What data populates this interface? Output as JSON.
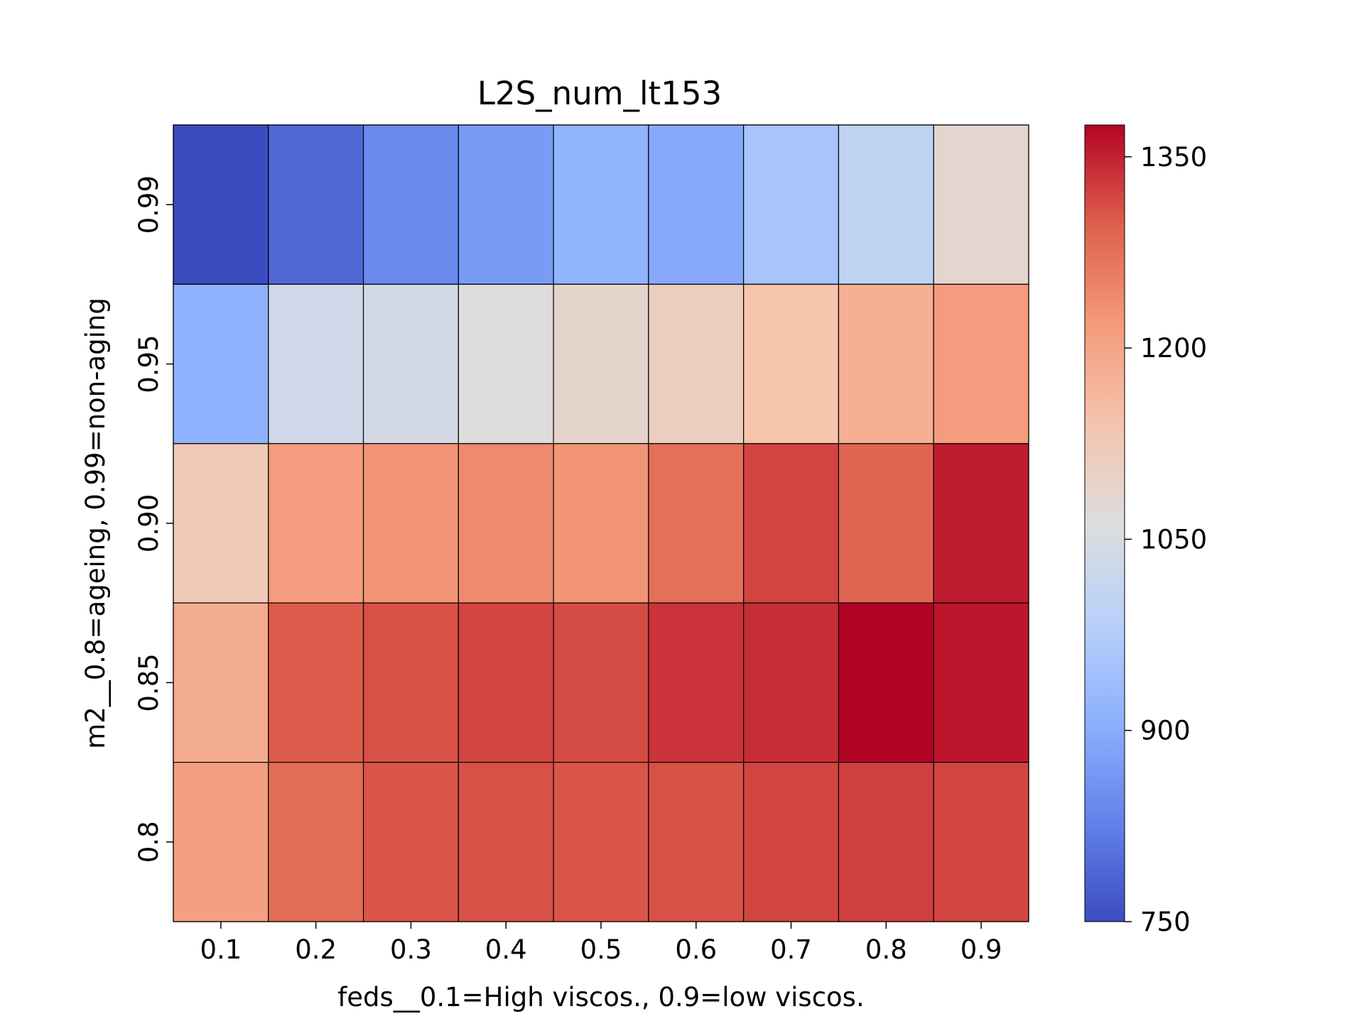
{
  "chart_data": {
    "type": "heatmap",
    "title": "L2S_num_lt153",
    "xlabel": "feds__0.1=High viscos., 0.9=low viscos.",
    "ylabel": "m2__0.8=ageing, 0.99=non-aging",
    "x_categories": [
      "0.1",
      "0.2",
      "0.3",
      "0.4",
      "0.5",
      "0.6",
      "0.7",
      "0.8",
      "0.9"
    ],
    "y_categories": [
      "0.99",
      "0.95",
      "0.90",
      "0.85",
      "0.8"
    ],
    "values": [
      [
        750,
        790,
        840,
        870,
        915,
        895,
        955,
        1000,
        1085
      ],
      [
        910,
        1030,
        1040,
        1065,
        1090,
        1110,
        1140,
        1180,
        1215
      ],
      [
        1125,
        1215,
        1225,
        1240,
        1225,
        1275,
        1320,
        1290,
        1355
      ],
      [
        1185,
        1300,
        1310,
        1320,
        1315,
        1335,
        1340,
        1375,
        1360
      ],
      [
        1210,
        1280,
        1305,
        1310,
        1305,
        1310,
        1320,
        1325,
        1320
      ]
    ],
    "colorbar": {
      "colormap": "coolwarm",
      "vmin": 750,
      "vmax": 1375,
      "ticks": [
        750,
        900,
        1050,
        1200,
        1350
      ],
      "tick_labels": [
        "750",
        "900",
        "1050",
        "1200",
        "1350"
      ]
    },
    "grid": false,
    "cell_borders": true
  }
}
